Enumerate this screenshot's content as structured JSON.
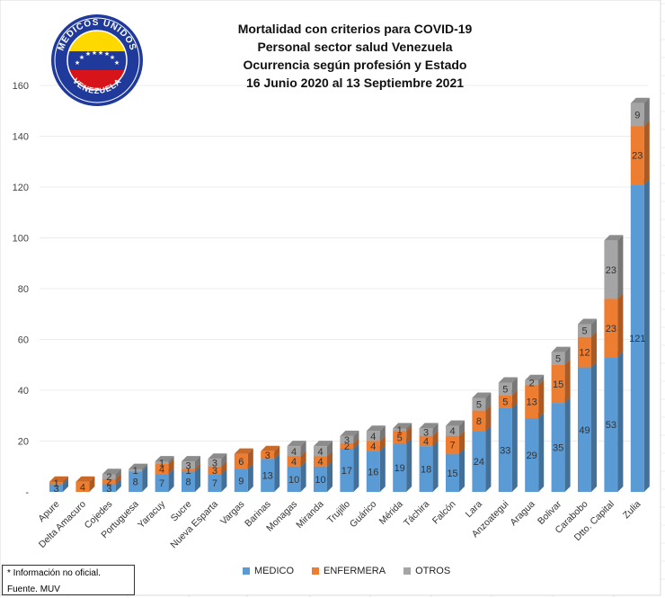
{
  "chart_data": {
    "type": "bar",
    "stacked": true,
    "title": [
      "Mortalidad con criterios para COVID-19",
      "Personal sector salud Venezuela",
      "Ocurrencia según profesión y Estado",
      "16 Junio 2020 al  13 Septiembre 2021"
    ],
    "xlabel": "",
    "ylabel": "",
    "ylim": [
      0,
      160
    ],
    "yticks": [
      0,
      20,
      40,
      60,
      80,
      100,
      120,
      140,
      160
    ],
    "ytick_labels": [
      "-",
      "20",
      "40",
      "60",
      "80",
      "100",
      "120",
      "140",
      "160"
    ],
    "categories": [
      "Apure",
      "Delta Amacuro",
      "Cojedes",
      "Portuguesa",
      "Yaracuy",
      "Sucre",
      "Nueva Esparta",
      "Vargas",
      "Barinas",
      "Monagas",
      "Miranda",
      "Trujillo",
      "Guárico",
      "Mérida",
      "Táchira",
      "Falcón",
      "Lara",
      "Anzoategui",
      "Aragua",
      "Bolivar",
      "Carabobo",
      "Dtto. Capital",
      "Zulia"
    ],
    "series": [
      {
        "name": "MEDICO",
        "color": "#5b9bd5",
        "values": [
          3,
          0,
          3,
          8,
          7,
          8,
          7,
          9,
          13,
          10,
          10,
          17,
          16,
          19,
          18,
          15,
          24,
          33,
          29,
          35,
          49,
          53,
          121
        ]
      },
      {
        "name": "ENFERMERA",
        "color": "#ed7d31",
        "values": [
          1,
          4,
          2,
          0,
          4,
          1,
          3,
          6,
          3,
          4,
          4,
          2,
          4,
          5,
          4,
          7,
          8,
          5,
          13,
          15,
          12,
          23,
          23
        ]
      },
      {
        "name": "OTROS",
        "color": "#a5a5a5",
        "values": [
          0,
          0,
          2,
          1,
          1,
          3,
          3,
          0,
          0,
          4,
          4,
          3,
          4,
          1,
          3,
          4,
          5,
          5,
          2,
          5,
          5,
          23,
          9
        ]
      }
    ],
    "legend_position": "bottom"
  },
  "logo": {
    "arc_text": "MEDICOS UNIDOS",
    "bottom_text": "VENEZUELA"
  },
  "notes": [
    "* Información no oficial.",
    "Fuente. MUV"
  ]
}
